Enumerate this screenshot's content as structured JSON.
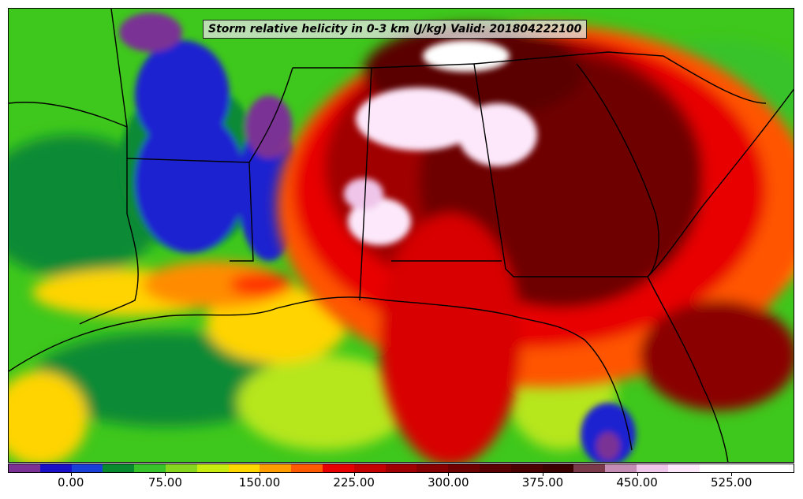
{
  "title": "Storm relative helicity in 0-3 km (J/kg) Valid: 201804222100",
  "colorbar": {
    "colors": [
      "#7b3294",
      "#1a10c8",
      "#1a3fd6",
      "#0a8a2e",
      "#38c32a",
      "#86d61f",
      "#c8ec10",
      "#ffd700",
      "#ff9c00",
      "#ff5a00",
      "#e80000",
      "#c40000",
      "#a00000",
      "#870000",
      "#6e0000",
      "#5a0000",
      "#4a0000",
      "#3b0000",
      "#7a3a4a",
      "#c48cb4",
      "#efc6ea",
      "#fde8fb",
      "#ffffff",
      "#ffffff",
      "#ffffff"
    ],
    "tick_labels": [
      "0.00",
      "75.00",
      "150.00",
      "225.00",
      "300.00",
      "375.00",
      "450.00",
      "525.00"
    ],
    "tick_values": [
      0,
      75,
      150,
      225,
      300,
      375,
      450,
      525
    ],
    "range": [
      -50,
      575
    ]
  }
}
